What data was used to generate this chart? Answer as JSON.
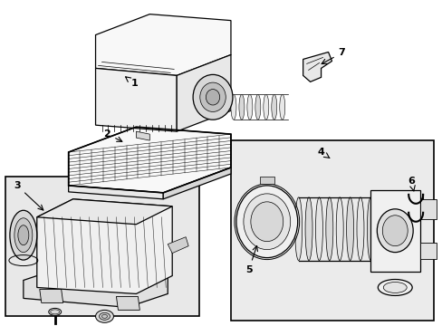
{
  "background_color": "#ffffff",
  "line_color": "#000000",
  "fill_white": "#ffffff",
  "fill_light": "#f5f5f5",
  "fill_gray": "#e8e8e8",
  "fill_mid": "#d0d0d0",
  "figsize": [
    4.89,
    3.6
  ],
  "dpi": 100,
  "lw_main": 0.9,
  "lw_thin": 0.5,
  "lw_thick": 1.2
}
